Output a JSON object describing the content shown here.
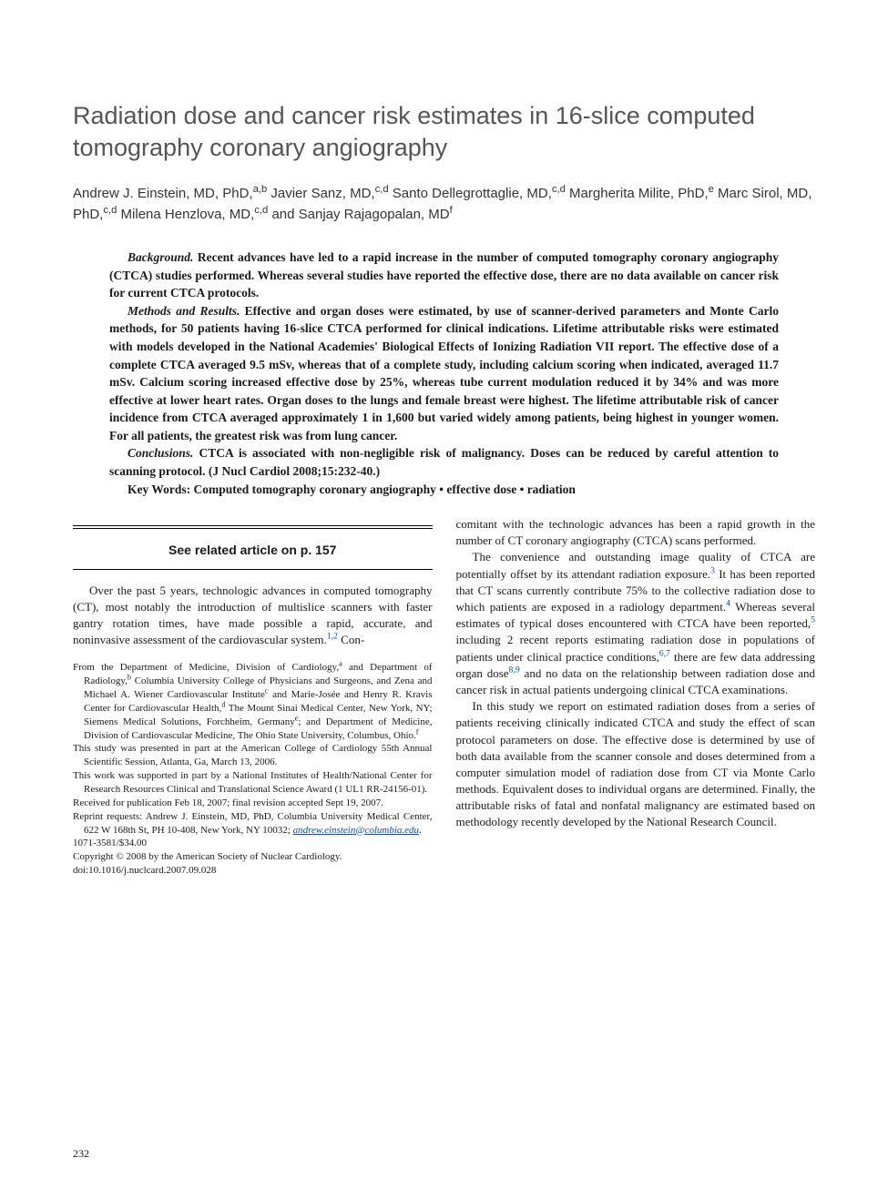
{
  "title": "Radiation dose and cancer risk estimates in 16-slice computed tomography coronary angiography",
  "authors_html": "Andrew J. Einstein, MD, PhD,<sup>a,b</sup> Javier Sanz, MD,<sup>c,d</sup> Santo Dellegrottaglie, MD,<sup>c,d</sup> Margherita Milite, PhD,<sup>e</sup> Marc Sirol, MD, PhD,<sup>c,d</sup> Milena Henzlova, MD,<sup>c,d</sup> and Sanjay Rajagopalan, MD<sup>f</sup>",
  "abstract": {
    "background_label": "Background.",
    "background": " Recent advances have led to a rapid increase in the number of computed tomography coronary angiography (CTCA) studies performed. Whereas several studies have reported the effective dose, there are no data available on cancer risk for current CTCA protocols.",
    "methods_label": "Methods and Results.",
    "methods": " Effective and organ doses were estimated, by use of scanner-derived parameters and Monte Carlo methods, for 50 patients having 16-slice CTCA performed for clinical indications. Lifetime attributable risks were estimated with models developed in the National Academies' Biological Effects of Ionizing Radiation VII report. The effective dose of a complete CTCA averaged 9.5 mSv, whereas that of a complete study, including calcium scoring when indicated, averaged 11.7 mSv. Calcium scoring increased effective dose by 25%, whereas tube current modulation reduced it by 34% and was more effective at lower heart rates. Organ doses to the lungs and female breast were highest. The lifetime attributable risk of cancer incidence from CTCA averaged approximately 1 in 1,600 but varied widely among patients, being highest in younger women. For all patients, the greatest risk was from lung cancer.",
    "conclusions_label": "Conclusions.",
    "conclusions": " CTCA is associated with non-negligible risk of malignancy. Doses can be reduced by careful attention to scanning protocol. (J Nucl Cardiol 2008;15:232-40.)",
    "keywords_label": "Key Words:",
    "keywords": " Computed tomography coronary angiography • effective dose • radiation"
  },
  "related_note": "See related article on p. 157",
  "body": {
    "col1_p1_html": "Over the past 5 years, technologic advances in computed tomography (CT), most notably the introduction of multislice scanners with faster gantry rotation times, have made possible a rapid, accurate, and noninvasive assessment of the cardiovascular system.<sup class=\"cite\">1,2</sup> Con-",
    "col2_p1": "comitant with the technologic advances has been a rapid growth in the number of CT coronary angiography (CTCA) scans performed.",
    "col2_p2_html": "The convenience and outstanding image quality of CTCA are potentially offset by its attendant radiation exposure.<sup class=\"cite\">3</sup> It has been reported that CT scans currently contribute 75% to the collective radiation dose to which patients are exposed in a radiology department.<sup class=\"cite\">4</sup> Whereas several estimates of typical doses encountered with CTCA have been reported,<sup class=\"cite\">5</sup> including 2 recent reports estimating radiation dose in populations of patients under clinical practice conditions,<sup class=\"cite\">6,7</sup> there are few data addressing organ dose<sup class=\"cite\">8,9</sup> and no data on the relationship between radiation dose and cancer risk in actual patients undergoing clinical CTCA examinations.",
    "col2_p3": "In this study we report on estimated radiation doses from a series of patients receiving clinically indicated CTCA and study the effect of scan protocol parameters on dose. The effective dose is determined by use of both data available from the scanner console and doses determined from a computer simulation model of radiation dose from CT via Monte Carlo methods. Equivalent doses to individual organs are determined. Finally, the attributable risks of fatal and nonfatal malignancy are estimated based on methodology recently developed by the National Research Council."
  },
  "footnotes": {
    "f1_html": "From the Department of Medicine, Division of Cardiology,<sup>a</sup> and Department of Radiology,<sup>b</sup> Columbia University College of Physicians and Surgeons, and Zena and Michael A. Wiener Cardiovascular Institute<sup>c</sup> and Marie-Josée and Henry R. Kravis Center for Cardiovascular Health,<sup>d</sup> The Mount Sinai Medical Center, New York, NY; Siemens Medical Solutions, Forchheim, Germany<sup>e</sup>; and Department of Medicine, Division of Cardiovascular Medicine, The Ohio State University, Columbus, Ohio.<sup>f</sup>",
    "f2": "This study was presented in part at the American College of Cardiology 55th Annual Scientific Session, Atlanta, Ga, March 13, 2006.",
    "f3": "This work was supported in part by a National Institutes of Health/National Center for Research Resources Clinical and Translational Science Award (1 UL1 RR-24156-01).",
    "f4": "Received for publication Feb 18, 2007; final revision accepted Sept 19, 2007.",
    "f5_pre": "Reprint requests: Andrew J. Einstein, MD, PhD, Columbia University Medical Center, 622 W 168th St, PH 10-408, New York, NY 10032; ",
    "f5_email": "andrew.einstein@columbia.edu",
    "f5_post": ".",
    "f6": "1071-3581/$34.00",
    "f7": "Copyright © 2008 by the American Society of Nuclear Cardiology.",
    "f8": "doi:10.1016/j.nuclcard.2007.09.028"
  },
  "page_number": "232",
  "colors": {
    "title_color": "#555555",
    "text_color": "#1a1a1a",
    "link_color": "#0050cc",
    "background": "#ffffff"
  },
  "typography": {
    "title_fontsize": 27,
    "authors_fontsize": 15,
    "abstract_fontsize": 13.5,
    "body_fontsize": 13,
    "footnote_fontsize": 11
  }
}
